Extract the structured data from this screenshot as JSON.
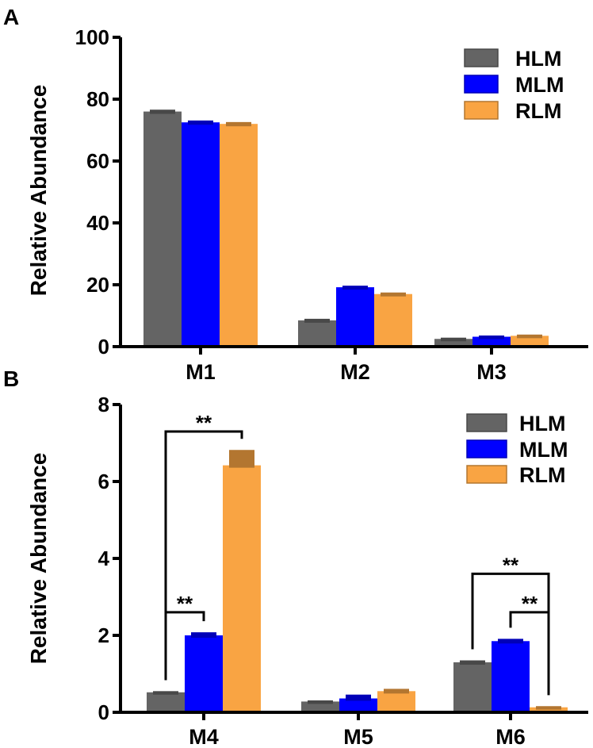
{
  "figure": {
    "panels": [
      "A",
      "B"
    ]
  },
  "colors": {
    "HLM": "#646464",
    "MLM": "#0000ff",
    "RLM": "#f9a443",
    "axis": "#000000"
  },
  "chart_data": [
    {
      "type": "bar",
      "panel": "A",
      "title": "",
      "xlabel": "",
      "ylabel": "Relative Abundance",
      "ylim": [
        0,
        100
      ],
      "yticks": [
        "0",
        "20",
        "40",
        "60",
        "80",
        "100"
      ],
      "categories": [
        "M1",
        "M2",
        "M3"
      ],
      "series": [
        {
          "name": "HLM",
          "values": [
            76,
            8.5,
            2.5
          ],
          "errors": [
            0.6,
            0.5,
            0.4
          ]
        },
        {
          "name": "MLM",
          "values": [
            72.5,
            19.2,
            3.2
          ],
          "errors": [
            0.6,
            0.5,
            0.4
          ]
        },
        {
          "name": "RLM",
          "values": [
            72,
            17,
            3.5
          ],
          "errors": [
            0.6,
            0.5,
            0.4
          ]
        }
      ],
      "legend": [
        "HLM",
        "MLM",
        "RLM"
      ],
      "legend_position": "top-right",
      "significance": []
    },
    {
      "type": "bar",
      "panel": "B",
      "title": "",
      "xlabel": "",
      "ylabel": "Relative Abundance",
      "ylim": [
        0,
        8
      ],
      "yticks": [
        "0",
        "2",
        "4",
        "6",
        "8"
      ],
      "categories": [
        "M4",
        "M5",
        "M6"
      ],
      "series": [
        {
          "name": "HLM",
          "values": [
            0.52,
            0.28,
            1.3
          ],
          "errors": [
            0.03,
            0.03,
            0.05
          ]
        },
        {
          "name": "MLM",
          "values": [
            2.0,
            0.36,
            1.85
          ],
          "errors": [
            0.08,
            0.1,
            0.06
          ]
        },
        {
          "name": "RLM",
          "values": [
            6.42,
            0.55,
            0.13
          ],
          "errors": [
            0.4,
            0.06,
            0.03
          ]
        }
      ],
      "legend": [
        "HLM",
        "MLM",
        "RLM"
      ],
      "legend_position": "top-right",
      "significance": [
        {
          "category": "M4",
          "from": "HLM",
          "to": "RLM",
          "label": "**",
          "level": 7.3
        },
        {
          "category": "M4",
          "from": "HLM",
          "to": "MLM",
          "label": "**",
          "level": 2.6
        },
        {
          "category": "M6",
          "from": "HLM",
          "to": "RLM",
          "label": "**",
          "level": 3.6
        },
        {
          "category": "M6",
          "from": "MLM",
          "to": "RLM",
          "label": "**",
          "level": 2.6
        }
      ]
    }
  ]
}
